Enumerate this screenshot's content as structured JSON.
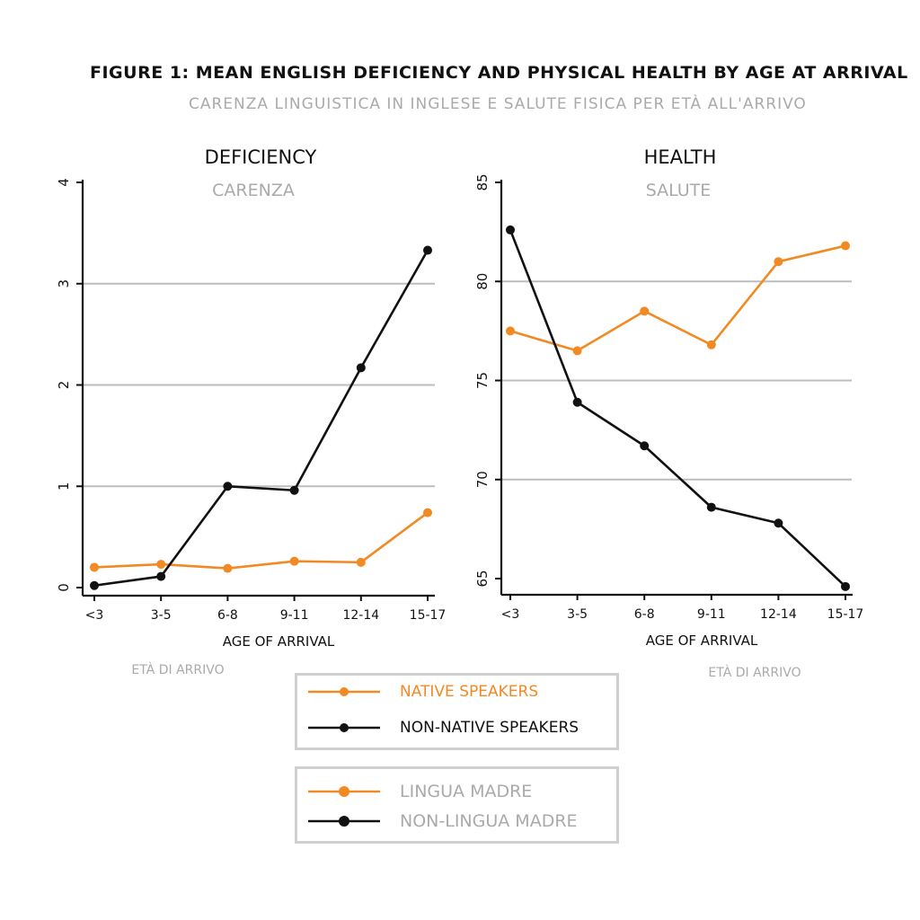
{
  "figure": {
    "title": "FIGURE 1: MEAN ENGLISH DEFICIENCY AND PHYSICAL HEALTH BY AGE AT ARRIVAL",
    "subtitle": "CARENZA LINGUISTICA IN INGLESE E SALUTE FISICA PER ETÀ ALL'ARRIVO"
  },
  "colors": {
    "native": "#f28a24",
    "nonnative": "#111111",
    "grid": "#bdbdbd",
    "secondary_text": "#aaaaaa"
  },
  "chart_data": [
    {
      "type": "line",
      "title": "DEFICIENCY",
      "title_it": "CARENZA",
      "xlabel": "AGE OF ARRIVAL",
      "xlabel_it": "ETÀ DI ARRIVO",
      "categories": [
        "<3",
        "3-5",
        "6-8",
        "9-11",
        "12-14",
        "15-17"
      ],
      "ylim": [
        0,
        4
      ],
      "yticks": [
        0,
        1,
        2,
        3,
        4
      ],
      "grid": true,
      "series": [
        {
          "name": "NATIVE SPEAKERS",
          "key": "native",
          "values": [
            0.2,
            0.23,
            0.19,
            0.26,
            0.25,
            0.74
          ]
        },
        {
          "name": "NON-NATIVE SPEAKERS",
          "key": "nonnative",
          "values": [
            0.02,
            0.11,
            1.0,
            0.96,
            2.17,
            3.33
          ]
        }
      ]
    },
    {
      "type": "line",
      "title": "HEALTH",
      "title_it": "SALUTE",
      "xlabel": "AGE OF ARRIVAL",
      "xlabel_it": "ETÀ DI ARRIVO",
      "categories": [
        "<3",
        "3-5",
        "6-8",
        "9-11",
        "12-14",
        "15-17"
      ],
      "ylim": [
        65,
        85
      ],
      "yticks": [
        65,
        70,
        75,
        80,
        85
      ],
      "grid": true,
      "series": [
        {
          "name": "NATIVE SPEAKERS",
          "key": "native",
          "values": [
            77.5,
            76.5,
            78.5,
            76.8,
            81.0,
            81.8
          ]
        },
        {
          "name": "NON-NATIVE SPEAKERS",
          "key": "nonnative",
          "values": [
            82.6,
            73.9,
            71.7,
            68.6,
            67.8,
            64.6
          ]
        }
      ]
    }
  ],
  "legend": {
    "english": [
      {
        "label": "NATIVE SPEAKERS",
        "key": "native"
      },
      {
        "label": "NON-NATIVE SPEAKERS",
        "key": "nonnative"
      }
    ],
    "italian": [
      {
        "label": "LINGUA MADRE",
        "key": "native"
      },
      {
        "label": "NON-LINGUA MADRE",
        "key": "nonnative"
      }
    ]
  }
}
